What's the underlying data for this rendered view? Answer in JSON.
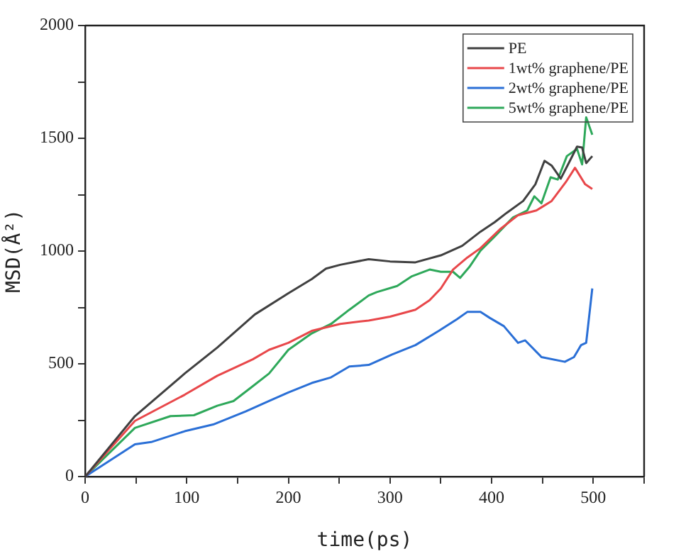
{
  "chart_data": {
    "type": "line",
    "xlabel": "time(ps)",
    "ylabel": "MSD(Å²)",
    "xlim": [
      0,
      550
    ],
    "xticks": [
      0,
      {
        "value": 50,
        "label": null
      },
      100,
      {
        "value": 150,
        "label": null
      },
      200,
      {
        "value": 250,
        "label": null
      },
      300,
      {
        "value": 350,
        "label": null
      },
      400,
      {
        "value": 450,
        "label": null
      },
      500,
      {
        "value": 550,
        "label": null
      }
    ],
    "ylim": [
      0,
      2000
    ],
    "yticks": [
      0,
      {
        "value": 250,
        "label": null
      },
      500,
      {
        "value": 750,
        "label": null
      },
      1000,
      {
        "value": 1250,
        "label": null
      },
      1500,
      {
        "value": 1750,
        "label": null
      },
      2000
    ],
    "grid": false,
    "legend": "top right",
    "marker": "none",
    "line_style": "solid",
    "series": [
      {
        "name": "PE",
        "color": "#404040",
        "x": [
          0,
          49,
          98,
          130,
          167,
          200,
          223,
          237,
          251,
          279,
          300,
          325,
          350,
          371,
          389,
          403,
          415,
          431,
          443,
          452,
          459,
          468,
          477,
          484,
          489,
          493,
          499
        ],
        "values": [
          0,
          268,
          457,
          572,
          719,
          813,
          876,
          922,
          939,
          964,
          954,
          950,
          981,
          1023,
          1086,
          1128,
          1170,
          1222,
          1296,
          1400,
          1379,
          1321,
          1400,
          1463,
          1459,
          1390,
          1421
        ]
      },
      {
        "name": "1wt% graphene/PE",
        "color": "#e8474a",
        "x": [
          0,
          49,
          98,
          130,
          165,
          181,
          200,
          223,
          251,
          279,
          300,
          325,
          339,
          350,
          362,
          376,
          389,
          408,
          426,
          444,
          459,
          473,
          482,
          492,
          499
        ],
        "values": [
          0,
          247,
          363,
          447,
          520,
          562,
          593,
          646,
          677,
          692,
          709,
          740,
          782,
          834,
          918,
          971,
          1013,
          1096,
          1159,
          1180,
          1222,
          1306,
          1369,
          1296,
          1275
        ]
      },
      {
        "name": "2wt% graphene/PE",
        "color": "#2a6fd6",
        "x": [
          0,
          49,
          65,
          98,
          126,
          158,
          181,
          200,
          223,
          242,
          260,
          279,
          302,
          325,
          348,
          366,
          376,
          389,
          398,
          412,
          426,
          433,
          449,
          472,
          481,
          488,
          493,
          499
        ],
        "values": [
          0,
          143,
          153,
          201,
          231,
          289,
          335,
          373,
          415,
          440,
          488,
          495,
          541,
          583,
          646,
          698,
          730,
          730,
          704,
          667,
          593,
          604,
          530,
          509,
          530,
          583,
          593,
          834
        ]
      },
      {
        "name": "5wt% graphene/PE",
        "color": "#2ea85a",
        "x": [
          0,
          49,
          84,
          107,
          130,
          146,
          163,
          181,
          200,
          223,
          242,
          260,
          279,
          287,
          307,
          321,
          339,
          350,
          362,
          369,
          378,
          389,
          403,
          421,
          435,
          442,
          449,
          458,
          465,
          474,
          484,
          489,
          493,
          499
        ],
        "values": [
          0,
          216,
          268,
          272,
          314,
          335,
          394,
          457,
          562,
          635,
          677,
          740,
          803,
          818,
          845,
          887,
          918,
          908,
          908,
          881,
          929,
          1002,
          1065,
          1149,
          1180,
          1243,
          1212,
          1327,
          1317,
          1421,
          1453,
          1384,
          1593,
          1516
        ]
      }
    ]
  }
}
